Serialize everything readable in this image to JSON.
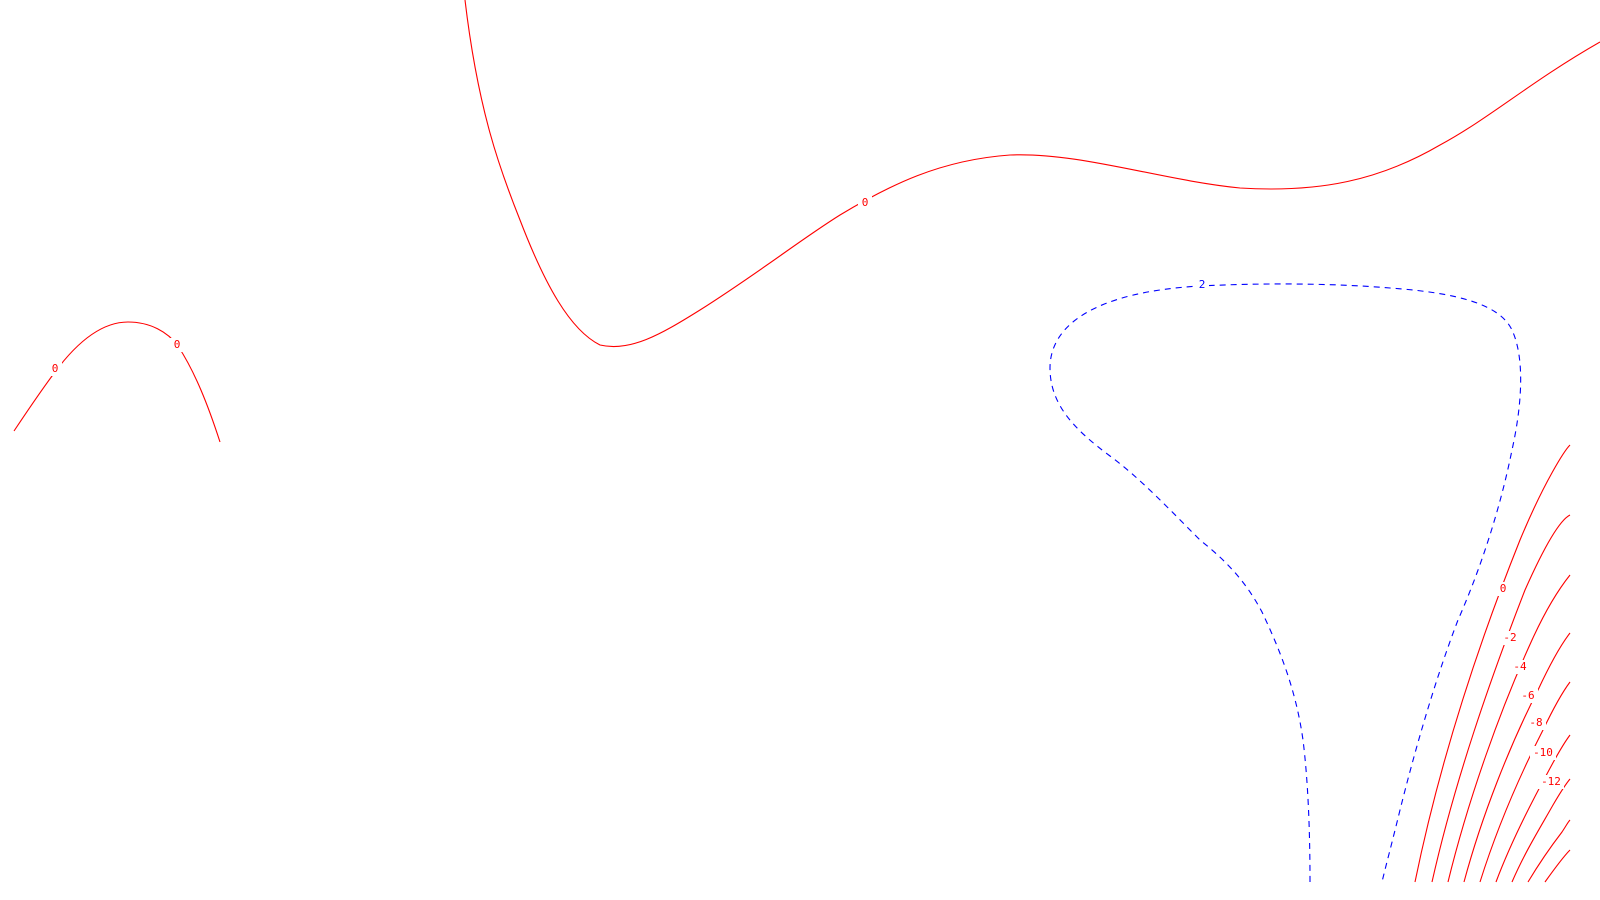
{
  "plot": {
    "colors": {
      "solid_contour": "#ff0000",
      "dashed_contour": "#0000ff",
      "background": "#ffffff"
    }
  },
  "contours": {
    "top_zero": {
      "value": 0,
      "style": "solid",
      "label": "0"
    },
    "left_arc": {
      "value": 0,
      "style": "solid",
      "labels": [
        "0",
        "0"
      ]
    },
    "dashed_loop": {
      "value": 2,
      "style": "dashed",
      "label": "2"
    },
    "right_fan": [
      {
        "value": 0,
        "label": "0"
      },
      {
        "value": -2,
        "label": "-2"
      },
      {
        "value": -4,
        "label": "-4"
      },
      {
        "value": -6,
        "label": "-6"
      },
      {
        "value": -8,
        "label": "-8"
      },
      {
        "value": -10,
        "label": "-10"
      },
      {
        "value": -12,
        "label": "-12"
      },
      {
        "value": -14,
        "label": ""
      },
      {
        "value": -16,
        "label": ""
      }
    ]
  }
}
